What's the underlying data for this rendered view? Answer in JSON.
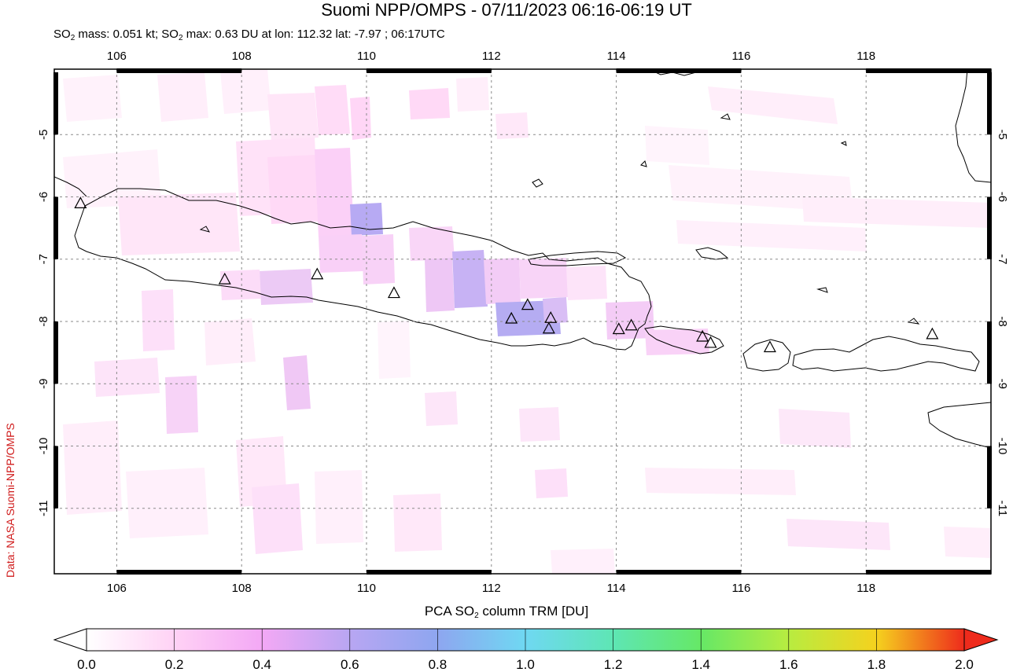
{
  "header": {
    "title": "Suomi NPP/OMPS - 07/11/2023 06:16-06:19 UT",
    "subtitle_pre": "SO",
    "subtitle_sub": "2",
    "subtitle_mid": " mass: 0.051 kt; SO",
    "subtitle_sub2": "2",
    "subtitle_post": " max: 0.63 DU at lon: 112.32 lat: -7.97 ; 06:17UTC"
  },
  "credit": "Data: NASA Suomi-NPP/OMPS",
  "map": {
    "lon_range": [
      105,
      120
    ],
    "lat_range": [
      -12.05,
      -3.95
    ],
    "lon_ticks": [
      "106",
      "108",
      "110",
      "112",
      "114",
      "116",
      "118"
    ],
    "lat_ticks": [
      "-5",
      "-6",
      "-7",
      "-8",
      "-9",
      "-10",
      "-11"
    ],
    "grid": true,
    "volcano_marker": "triangle-icon",
    "volcanoes": [
      {
        "lon": 105.42,
        "lat": -6.1
      },
      {
        "lon": 107.73,
        "lat": -7.32
      },
      {
        "lon": 109.21,
        "lat": -7.24
      },
      {
        "lon": 110.44,
        "lat": -7.54
      },
      {
        "lon": 112.32,
        "lat": -7.95
      },
      {
        "lon": 112.58,
        "lat": -7.73
      },
      {
        "lon": 112.95,
        "lat": -7.94
      },
      {
        "lon": 112.92,
        "lat": -8.11
      },
      {
        "lon": 114.04,
        "lat": -8.12
      },
      {
        "lon": 114.24,
        "lat": -8.06
      },
      {
        "lon": 115.38,
        "lat": -8.24
      },
      {
        "lon": 115.51,
        "lat": -8.34
      },
      {
        "lon": 116.46,
        "lat": -8.41
      },
      {
        "lon": 119.06,
        "lat": -8.2
      }
    ]
  },
  "colorbar": {
    "title_pre": "PCA SO",
    "title_sub": "2",
    "title_post": " column TRM [DU]",
    "min": 0.0,
    "max": 2.0,
    "ticks": [
      "0.0",
      "0.2",
      "0.4",
      "0.6",
      "0.8",
      "1.0",
      "1.2",
      "1.4",
      "1.6",
      "1.8",
      "2.0"
    ],
    "colors": [
      "#ffffff",
      "#ffd2f5",
      "#f3a8f5",
      "#b8a6f2",
      "#8ea6f0",
      "#6fd8f2",
      "#5ee6b4",
      "#66e866",
      "#b8ec40",
      "#f5d21e",
      "#f57a1a",
      "#ee2b1c"
    ]
  }
}
